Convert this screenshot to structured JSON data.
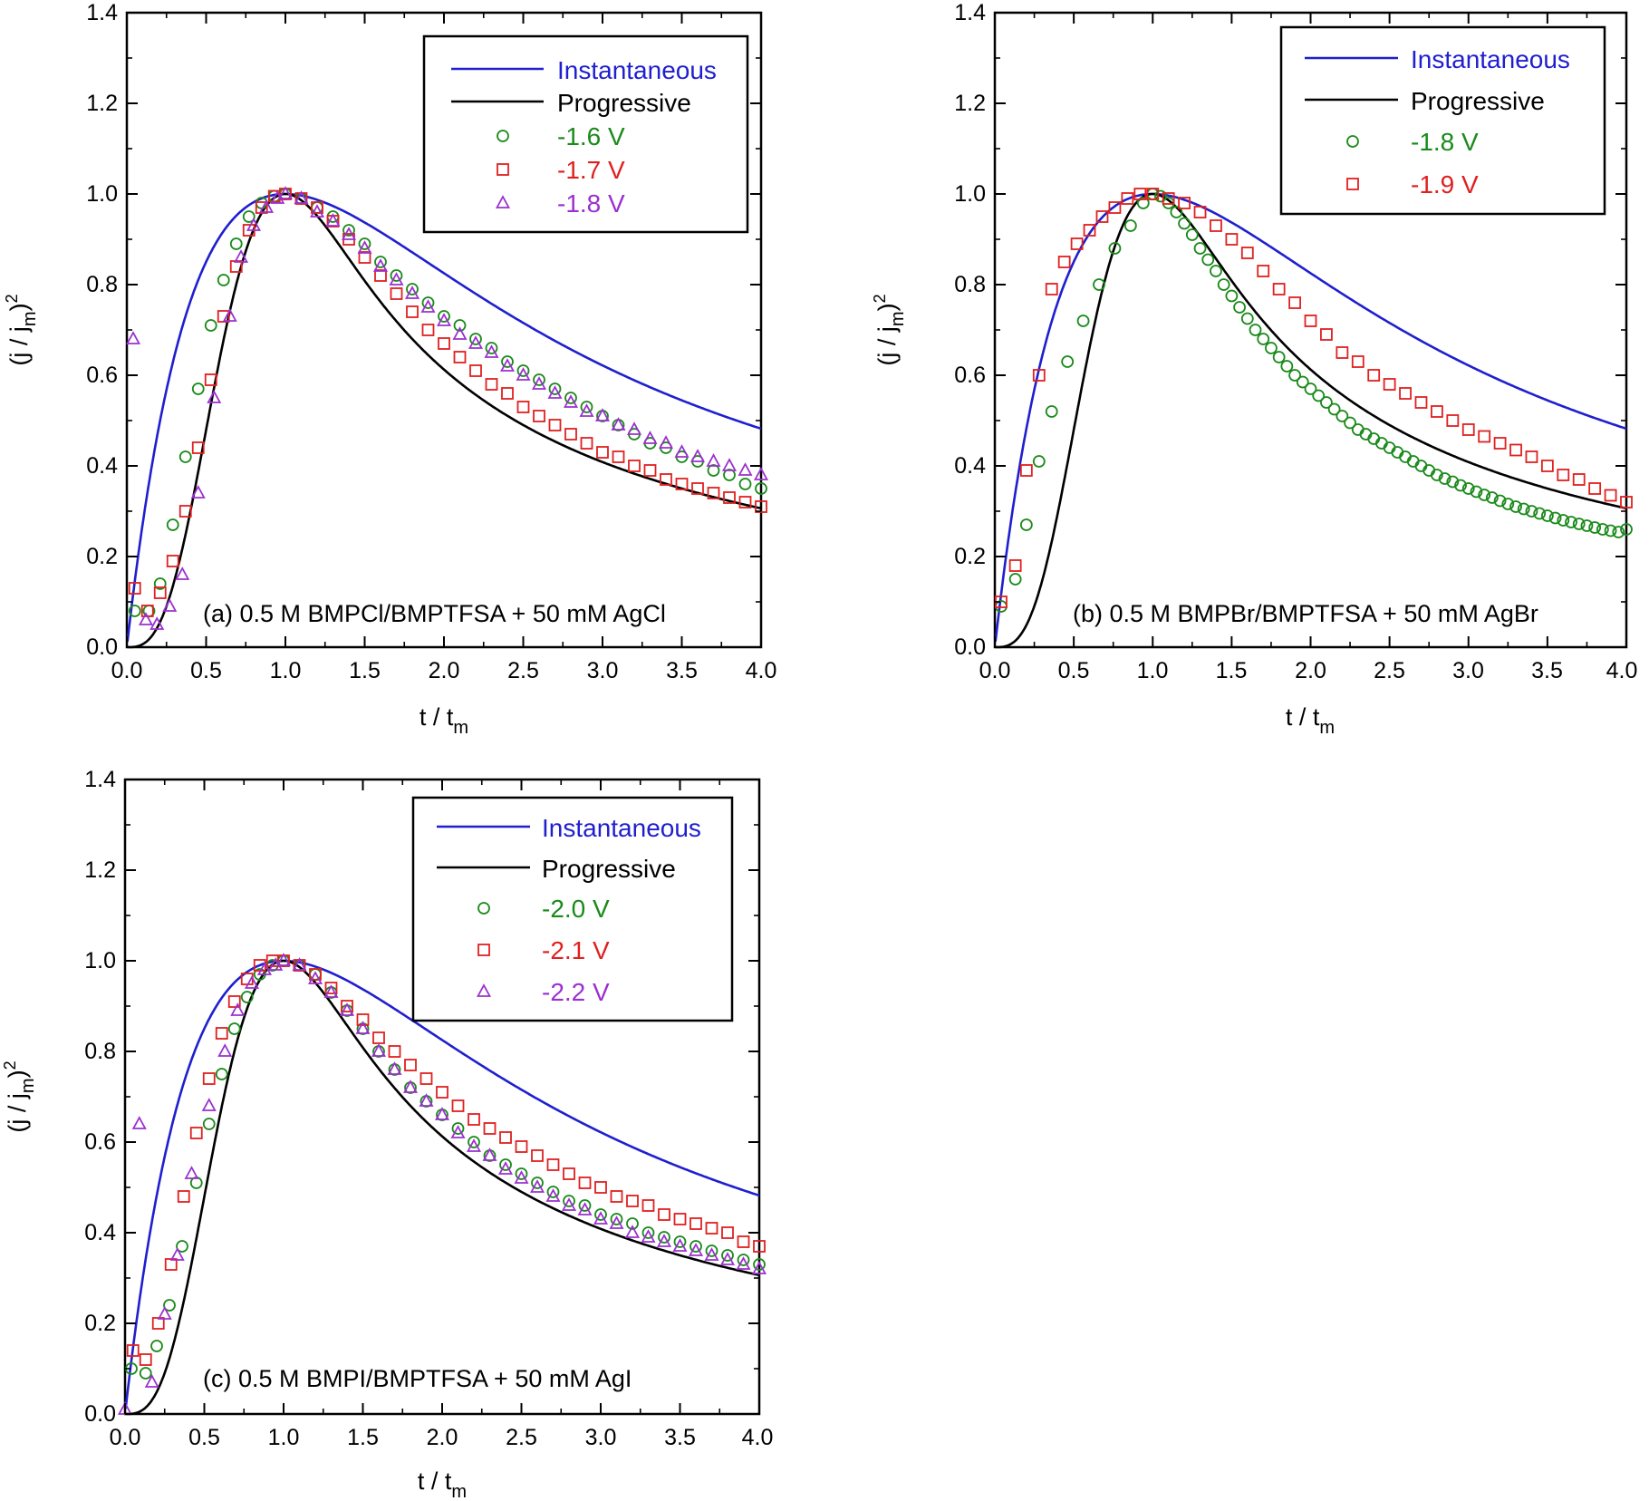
{
  "model_colors": {
    "instantaneous": "#1f1fcf",
    "progressive": "#000000"
  },
  "chart_data": [
    {
      "id": "a",
      "type": "scatter",
      "annotation": "(a) 0.5 M BMPCl/BMPTFSA + 50 mM AgCl",
      "xlabel": "t / t",
      "xlabel_sub": "m",
      "ylabel": "(j / j",
      "ylabel_sub": "m",
      "ylabel_tail": ")",
      "ylabel_sup": "2",
      "xlim": [
        0,
        4
      ],
      "ylim": [
        0,
        1.4
      ],
      "xticks": [
        "0.0",
        "0.5",
        "1.0",
        "1.5",
        "2.0",
        "2.5",
        "3.0",
        "3.5",
        "4.0"
      ],
      "yticks": [
        "0.0",
        "0.2",
        "0.4",
        "0.6",
        "0.8",
        "1.0",
        "1.2",
        "1.4"
      ],
      "grid": false,
      "legend": "top-right",
      "models": [
        {
          "key": "instantaneous",
          "name": "Instantaneous",
          "color": "#1f1fcf"
        },
        {
          "key": "progressive",
          "name": "Progressive",
          "color": "#000000"
        }
      ],
      "series": [
        {
          "name": "-1.6 V",
          "marker": "circle",
          "color": "#1a8a1a",
          "x": [
            0.05,
            0.14,
            0.21,
            0.29,
            0.37,
            0.45,
            0.53,
            0.61,
            0.69,
            0.77,
            0.85,
            0.93,
            1.0,
            1.1,
            1.2,
            1.3,
            1.4,
            1.5,
            1.6,
            1.7,
            1.8,
            1.9,
            2.0,
            2.1,
            2.2,
            2.3,
            2.4,
            2.5,
            2.6,
            2.7,
            2.8,
            2.9,
            3.0,
            3.1,
            3.2,
            3.3,
            3.4,
            3.5,
            3.6,
            3.7,
            3.8,
            3.9,
            4.0
          ],
          "y": [
            0.08,
            0.08,
            0.14,
            0.27,
            0.42,
            0.57,
            0.71,
            0.81,
            0.89,
            0.95,
            0.98,
            0.995,
            1.0,
            0.99,
            0.97,
            0.95,
            0.92,
            0.89,
            0.85,
            0.82,
            0.79,
            0.76,
            0.73,
            0.71,
            0.68,
            0.66,
            0.63,
            0.61,
            0.59,
            0.57,
            0.55,
            0.53,
            0.51,
            0.49,
            0.47,
            0.45,
            0.44,
            0.42,
            0.41,
            0.39,
            0.38,
            0.36,
            0.35
          ]
        },
        {
          "name": "-1.7 V",
          "marker": "square",
          "color": "#e02020",
          "x": [
            0.05,
            0.13,
            0.21,
            0.29,
            0.37,
            0.45,
            0.53,
            0.61,
            0.69,
            0.77,
            0.85,
            0.93,
            1.0,
            1.1,
            1.2,
            1.3,
            1.4,
            1.5,
            1.6,
            1.7,
            1.8,
            1.9,
            2.0,
            2.1,
            2.2,
            2.3,
            2.4,
            2.5,
            2.6,
            2.7,
            2.8,
            2.9,
            3.0,
            3.1,
            3.2,
            3.3,
            3.4,
            3.5,
            3.6,
            3.7,
            3.8,
            3.9,
            4.0
          ],
          "y": [
            0.13,
            0.08,
            0.12,
            0.19,
            0.3,
            0.44,
            0.59,
            0.73,
            0.84,
            0.92,
            0.97,
            0.995,
            1.0,
            0.99,
            0.97,
            0.94,
            0.9,
            0.86,
            0.82,
            0.78,
            0.74,
            0.7,
            0.67,
            0.64,
            0.61,
            0.58,
            0.56,
            0.53,
            0.51,
            0.49,
            0.47,
            0.45,
            0.43,
            0.42,
            0.4,
            0.39,
            0.37,
            0.36,
            0.35,
            0.34,
            0.33,
            0.32,
            0.31
          ]
        },
        {
          "name": "-1.8 V",
          "marker": "triangle",
          "color": "#9b30d0",
          "x": [
            0.04,
            0.12,
            0.19,
            0.27,
            0.35,
            0.45,
            0.55,
            0.65,
            0.72,
            0.8,
            0.88,
            0.95,
            1.0,
            1.1,
            1.2,
            1.3,
            1.4,
            1.5,
            1.6,
            1.7,
            1.8,
            1.9,
            2.0,
            2.1,
            2.2,
            2.3,
            2.4,
            2.5,
            2.6,
            2.7,
            2.8,
            2.9,
            3.0,
            3.1,
            3.2,
            3.3,
            3.4,
            3.5,
            3.6,
            3.7,
            3.8,
            3.9,
            4.0
          ],
          "y": [
            0.68,
            0.06,
            0.05,
            0.09,
            0.16,
            0.34,
            0.55,
            0.73,
            0.86,
            0.93,
            0.97,
            0.99,
            1.0,
            0.99,
            0.96,
            0.94,
            0.91,
            0.88,
            0.84,
            0.81,
            0.78,
            0.75,
            0.72,
            0.69,
            0.67,
            0.65,
            0.62,
            0.6,
            0.58,
            0.56,
            0.54,
            0.52,
            0.51,
            0.49,
            0.48,
            0.46,
            0.45,
            0.43,
            0.42,
            0.41,
            0.4,
            0.39,
            0.38
          ]
        }
      ]
    },
    {
      "id": "b",
      "type": "scatter",
      "annotation": "(b) 0.5 M BMPBr/BMPTFSA + 50 mM AgBr",
      "xlabel": "t / t",
      "xlabel_sub": "m",
      "ylabel": "(j / j",
      "ylabel_sub": "m",
      "ylabel_tail": ")",
      "ylabel_sup": "2",
      "xlim": [
        0,
        4
      ],
      "ylim": [
        0,
        1.4
      ],
      "xticks": [
        "0.0",
        "0.5",
        "1.0",
        "1.5",
        "2.0",
        "2.5",
        "3.0",
        "3.5",
        "4.0"
      ],
      "yticks": [
        "0.0",
        "0.2",
        "0.4",
        "0.6",
        "0.8",
        "1.0",
        "1.2",
        "1.4"
      ],
      "grid": false,
      "legend": "top-right",
      "models": [
        {
          "key": "instantaneous",
          "name": "Instantaneous",
          "color": "#1f1fcf"
        },
        {
          "key": "progressive",
          "name": "Progressive",
          "color": "#000000"
        }
      ],
      "series": [
        {
          "name": "-1.8 V",
          "marker": "circle",
          "color": "#1a8a1a",
          "x": [
            0.04,
            0.13,
            0.2,
            0.28,
            0.36,
            0.46,
            0.56,
            0.66,
            0.76,
            0.86,
            0.94,
            1.0,
            1.05,
            1.1,
            1.15,
            1.2,
            1.25,
            1.3,
            1.35,
            1.4,
            1.45,
            1.5,
            1.55,
            1.6,
            1.65,
            1.7,
            1.75,
            1.8,
            1.85,
            1.9,
            1.95,
            2.0,
            2.05,
            2.1,
            2.15,
            2.2,
            2.25,
            2.3,
            2.35,
            2.4,
            2.45,
            2.5,
            2.55,
            2.6,
            2.65,
            2.7,
            2.75,
            2.8,
            2.85,
            2.9,
            2.95,
            3.0,
            3.05,
            3.1,
            3.15,
            3.2,
            3.25,
            3.3,
            3.35,
            3.4,
            3.45,
            3.5,
            3.55,
            3.6,
            3.65,
            3.7,
            3.75,
            3.8,
            3.85,
            3.9,
            3.95,
            4.0
          ],
          "y": [
            0.09,
            0.15,
            0.27,
            0.41,
            0.52,
            0.63,
            0.72,
            0.8,
            0.88,
            0.93,
            0.98,
            1.0,
            0.995,
            0.98,
            0.96,
            0.935,
            0.91,
            0.88,
            0.855,
            0.83,
            0.8,
            0.775,
            0.75,
            0.725,
            0.7,
            0.68,
            0.66,
            0.64,
            0.62,
            0.6,
            0.585,
            0.57,
            0.555,
            0.54,
            0.525,
            0.51,
            0.495,
            0.48,
            0.47,
            0.46,
            0.45,
            0.44,
            0.43,
            0.42,
            0.41,
            0.4,
            0.39,
            0.38,
            0.372,
            0.365,
            0.357,
            0.35,
            0.343,
            0.336,
            0.33,
            0.323,
            0.316,
            0.31,
            0.305,
            0.3,
            0.295,
            0.29,
            0.285,
            0.28,
            0.276,
            0.272,
            0.268,
            0.264,
            0.26,
            0.257,
            0.254,
            0.26
          ]
        },
        {
          "name": "-1.9 V",
          "marker": "square",
          "color": "#e02020",
          "x": [
            0.04,
            0.13,
            0.2,
            0.28,
            0.36,
            0.44,
            0.52,
            0.6,
            0.68,
            0.76,
            0.84,
            0.92,
            1.0,
            1.1,
            1.2,
            1.3,
            1.4,
            1.5,
            1.6,
            1.7,
            1.8,
            1.9,
            2.0,
            2.1,
            2.2,
            2.3,
            2.4,
            2.5,
            2.6,
            2.7,
            2.8,
            2.9,
            3.0,
            3.1,
            3.2,
            3.3,
            3.4,
            3.5,
            3.6,
            3.7,
            3.8,
            3.9,
            4.0
          ],
          "y": [
            0.1,
            0.18,
            0.39,
            0.6,
            0.79,
            0.85,
            0.89,
            0.92,
            0.95,
            0.97,
            0.99,
            1.0,
            1.0,
            0.99,
            0.98,
            0.96,
            0.93,
            0.9,
            0.87,
            0.83,
            0.79,
            0.76,
            0.72,
            0.69,
            0.65,
            0.63,
            0.6,
            0.58,
            0.56,
            0.54,
            0.52,
            0.5,
            0.48,
            0.465,
            0.45,
            0.435,
            0.42,
            0.4,
            0.38,
            0.37,
            0.35,
            0.335,
            0.32
          ]
        }
      ]
    },
    {
      "id": "c",
      "type": "scatter",
      "annotation": "(c) 0.5 M BMPI/BMPTFSA + 50 mM AgI",
      "xlabel": "t / t",
      "xlabel_sub": "m",
      "ylabel": "(j / j",
      "ylabel_sub": "m",
      "ylabel_tail": ")",
      "ylabel_sup": "2",
      "xlim": [
        0,
        4
      ],
      "ylim": [
        0,
        1.4
      ],
      "xticks": [
        "0.0",
        "0.5",
        "1.0",
        "1.5",
        "2.0",
        "2.5",
        "3.0",
        "3.5",
        "4.0"
      ],
      "yticks": [
        "0.0",
        "0.2",
        "0.4",
        "0.6",
        "0.8",
        "1.0",
        "1.2",
        "1.4"
      ],
      "grid": false,
      "legend": "top-right",
      "models": [
        {
          "key": "instantaneous",
          "name": "Instantaneous",
          "color": "#1f1fcf"
        },
        {
          "key": "progressive",
          "name": "Progressive",
          "color": "#000000"
        }
      ],
      "series": [
        {
          "name": "-2.0 V",
          "marker": "circle",
          "color": "#1a8a1a",
          "x": [
            0.04,
            0.13,
            0.2,
            0.28,
            0.36,
            0.45,
            0.53,
            0.61,
            0.69,
            0.77,
            0.85,
            0.93,
            1.0,
            1.1,
            1.2,
            1.3,
            1.4,
            1.5,
            1.6,
            1.7,
            1.8,
            1.9,
            2.0,
            2.1,
            2.2,
            2.3,
            2.4,
            2.5,
            2.6,
            2.7,
            2.8,
            2.9,
            3.0,
            3.1,
            3.2,
            3.3,
            3.4,
            3.5,
            3.6,
            3.7,
            3.8,
            3.9,
            4.0
          ],
          "y": [
            0.1,
            0.09,
            0.15,
            0.24,
            0.37,
            0.51,
            0.64,
            0.75,
            0.85,
            0.92,
            0.97,
            0.99,
            1.0,
            0.99,
            0.97,
            0.93,
            0.89,
            0.85,
            0.8,
            0.76,
            0.72,
            0.69,
            0.66,
            0.63,
            0.6,
            0.57,
            0.55,
            0.53,
            0.51,
            0.49,
            0.47,
            0.46,
            0.44,
            0.43,
            0.42,
            0.4,
            0.39,
            0.38,
            0.37,
            0.36,
            0.35,
            0.34,
            0.33
          ]
        },
        {
          "name": "-2.1 V",
          "marker": "square",
          "color": "#e02020",
          "x": [
            0.05,
            0.13,
            0.21,
            0.29,
            0.37,
            0.45,
            0.53,
            0.61,
            0.69,
            0.77,
            0.85,
            0.93,
            1.0,
            1.1,
            1.2,
            1.3,
            1.4,
            1.5,
            1.6,
            1.7,
            1.8,
            1.9,
            2.0,
            2.1,
            2.2,
            2.3,
            2.4,
            2.5,
            2.6,
            2.7,
            2.8,
            2.9,
            3.0,
            3.1,
            3.2,
            3.3,
            3.4,
            3.5,
            3.6,
            3.7,
            3.8,
            3.9,
            4.0
          ],
          "y": [
            0.14,
            0.12,
            0.2,
            0.33,
            0.48,
            0.62,
            0.74,
            0.84,
            0.91,
            0.96,
            0.99,
            1.0,
            1.0,
            0.99,
            0.97,
            0.94,
            0.9,
            0.87,
            0.83,
            0.8,
            0.77,
            0.74,
            0.71,
            0.68,
            0.65,
            0.63,
            0.61,
            0.59,
            0.57,
            0.55,
            0.53,
            0.51,
            0.5,
            0.48,
            0.47,
            0.46,
            0.44,
            0.43,
            0.42,
            0.41,
            0.4,
            0.38,
            0.37
          ]
        },
        {
          "name": "-2.2 V",
          "marker": "triangle",
          "color": "#9b30d0",
          "x": [
            0.0,
            0.09,
            0.17,
            0.25,
            0.33,
            0.42,
            0.53,
            0.63,
            0.71,
            0.8,
            0.88,
            0.95,
            1.0,
            1.1,
            1.2,
            1.3,
            1.4,
            1.5,
            1.6,
            1.7,
            1.8,
            1.9,
            2.0,
            2.1,
            2.2,
            2.3,
            2.4,
            2.5,
            2.6,
            2.7,
            2.8,
            2.9,
            3.0,
            3.1,
            3.2,
            3.3,
            3.4,
            3.5,
            3.6,
            3.7,
            3.8,
            3.9,
            4.0
          ],
          "y": [
            0.01,
            0.64,
            0.07,
            0.22,
            0.35,
            0.53,
            0.68,
            0.8,
            0.89,
            0.95,
            0.98,
            0.99,
            1.0,
            0.99,
            0.96,
            0.93,
            0.89,
            0.85,
            0.8,
            0.76,
            0.72,
            0.69,
            0.66,
            0.62,
            0.59,
            0.57,
            0.54,
            0.52,
            0.5,
            0.48,
            0.46,
            0.45,
            0.43,
            0.42,
            0.4,
            0.39,
            0.38,
            0.37,
            0.36,
            0.35,
            0.34,
            0.33,
            0.32
          ]
        }
      ]
    }
  ]
}
